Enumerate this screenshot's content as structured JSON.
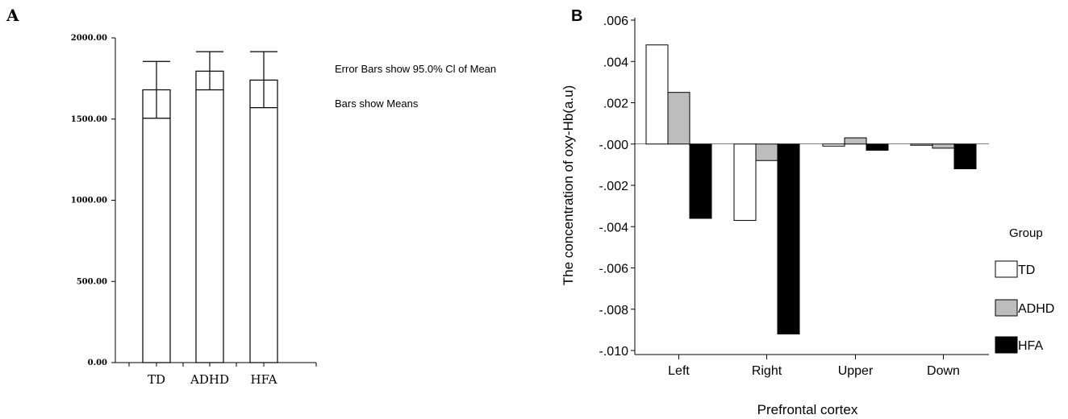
{
  "panels": {
    "a": {
      "letter": "A"
    },
    "b": {
      "letter": "B"
    }
  },
  "chart_data": [
    {
      "type": "bar",
      "panel": "A",
      "categories": [
        "TD",
        "ADHD",
        "HFA"
      ],
      "values": [
        1680,
        1795,
        1740
      ],
      "error_bars": [
        [
          1505,
          1855
        ],
        [
          1680,
          1915
        ],
        [
          1570,
          1915
        ]
      ],
      "ylim": [
        0,
        2000
      ],
      "yticks": [
        "0.00",
        "500.00",
        "1000.00",
        "1500.00",
        "2000.00"
      ],
      "annotations": [
        "Error Bars show 95.0% Cl of Mean",
        "Bars show Means"
      ],
      "fill_color": "#ffffff",
      "grid": false
    },
    {
      "type": "bar",
      "panel": "B",
      "categories": [
        "Left",
        "Right",
        "Upper",
        "Down"
      ],
      "series": [
        {
          "name": "TD",
          "color": "#ffffff",
          "values": [
            0.0048,
            -0.0037,
            -0.0001,
            -5e-05
          ]
        },
        {
          "name": "ADHD",
          "color": "#bdbdbd",
          "values": [
            0.0025,
            -0.0008,
            0.0003,
            -0.0002
          ]
        },
        {
          "name": "HFA",
          "color": "#000000",
          "values": [
            -0.0036,
            -0.0092,
            -0.0003,
            -0.0012
          ]
        }
      ],
      "ylim": [
        -0.01,
        0.006
      ],
      "yticks": [
        ".006",
        ".004",
        ".002",
        "-.000",
        "-.002",
        "-.004",
        "-.006",
        "-.008",
        "-.010"
      ],
      "xlabel": "Prefrontal cortex",
      "ylabel": "The concentration of oxy-Hb(a.u)",
      "legend_title": "Group",
      "legend_position": "right",
      "grid": false
    }
  ]
}
